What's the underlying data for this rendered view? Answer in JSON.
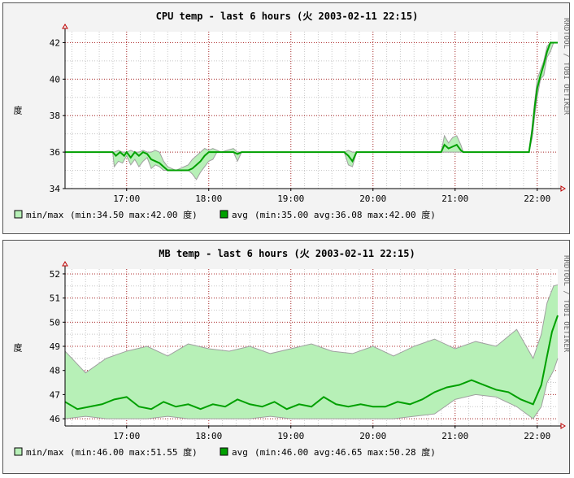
{
  "chart_data": [
    {
      "type": "line",
      "title": "CPU temp - last 6 hours (火 2003-02-11 22:15)",
      "ylabel": "度",
      "ylim": [
        34,
        42.6
      ],
      "yticks": [
        34,
        36,
        38,
        40,
        42
      ],
      "xlim": [
        16.25,
        22.25
      ],
      "xticks": [
        17,
        18,
        19,
        20,
        21,
        22
      ],
      "xtick_labels": [
        "17:00",
        "18:00",
        "19:00",
        "20:00",
        "21:00",
        "22:00"
      ],
      "grid": true,
      "side_label": "RRDTOOL / TOBI OETIKER",
      "colors": {
        "area": "#b7f0b7",
        "minmax_line": "#a0a0a0",
        "avg_line": "#00a000",
        "grid": "#b03030"
      },
      "legend": {
        "minmax_label": "min/max",
        "minmax_stats": "(min:34.50    max:42.00    度)",
        "avg_label": "avg",
        "avg_stats": "(min:35.00    avg:36.08    max:42.00    度)"
      },
      "series": [
        {
          "name": "min/max",
          "x": [
            16.25,
            16.83,
            16.85,
            16.9,
            16.95,
            17.0,
            17.05,
            17.1,
            17.15,
            17.2,
            17.25,
            17.3,
            17.35,
            17.4,
            17.45,
            17.5,
            17.55,
            17.6,
            17.65,
            17.7,
            17.75,
            17.8,
            17.85,
            17.9,
            17.95,
            18.0,
            18.05,
            18.1,
            18.15,
            18.3,
            18.35,
            18.4,
            19.65,
            19.7,
            19.75,
            19.8,
            20.83,
            20.87,
            20.92,
            20.97,
            21.02,
            21.07,
            21.1,
            21.9,
            21.94,
            21.97,
            22.0,
            22.04,
            22.08,
            22.12,
            22.16,
            22.2,
            22.25
          ],
          "min": [
            36,
            36,
            35.2,
            35.5,
            35.4,
            35.8,
            35.3,
            35.6,
            35.2,
            35.5,
            35.7,
            35.1,
            35.3,
            35.2,
            35.0,
            35.0,
            35.0,
            35.0,
            35.0,
            35.0,
            35.0,
            34.8,
            34.5,
            34.9,
            35.2,
            35.5,
            35.6,
            36.0,
            36.0,
            36.0,
            35.5,
            36.0,
            36.0,
            35.3,
            35.2,
            36.0,
            36.0,
            36.0,
            36.0,
            36.0,
            36.0,
            36.0,
            36.0,
            36.0,
            36.8,
            38.0,
            39.0,
            40.0,
            40.2,
            41.2,
            41.5,
            42.0,
            42.0
          ],
          "max": [
            36,
            36,
            36.0,
            36.1,
            36.0,
            36.0,
            36.1,
            36.0,
            36.0,
            36.1,
            36.0,
            36.0,
            36.1,
            36.0,
            35.5,
            35.2,
            35.1,
            35.0,
            35.1,
            35.2,
            35.3,
            35.6,
            35.8,
            36.0,
            36.2,
            36.1,
            36.2,
            36.1,
            36.0,
            36.2,
            36.0,
            36.0,
            36.0,
            36.1,
            36.0,
            36.0,
            36.0,
            36.9,
            36.5,
            36.8,
            36.9,
            36.4,
            36.0,
            36.0,
            37.5,
            38.8,
            40.0,
            40.5,
            41.0,
            41.8,
            42.0,
            42.0,
            42.0
          ]
        },
        {
          "name": "avg",
          "x": [
            16.25,
            16.83,
            16.87,
            16.92,
            16.97,
            17.0,
            17.05,
            17.1,
            17.15,
            17.2,
            17.25,
            17.3,
            17.35,
            17.4,
            17.45,
            17.5,
            17.55,
            17.6,
            17.65,
            17.7,
            17.75,
            17.8,
            17.85,
            17.9,
            17.95,
            18.0,
            18.05,
            18.1,
            18.15,
            18.3,
            18.35,
            18.4,
            19.65,
            19.7,
            19.75,
            19.8,
            20.83,
            20.87,
            20.92,
            20.97,
            21.02,
            21.07,
            21.1,
            21.9,
            21.94,
            21.97,
            22.0,
            22.04,
            22.08,
            22.12,
            22.16,
            22.2,
            22.25
          ],
          "values": [
            36,
            36,
            35.8,
            36.0,
            35.8,
            36.0,
            35.7,
            36.0,
            35.8,
            36.0,
            35.9,
            35.6,
            35.5,
            35.4,
            35.2,
            35.0,
            35.0,
            35.0,
            35.0,
            35.0,
            35.0,
            35.1,
            35.3,
            35.5,
            35.8,
            36.0,
            36.0,
            36.0,
            36.0,
            36.0,
            35.9,
            36.0,
            36.0,
            35.8,
            35.5,
            36.0,
            36.0,
            36.4,
            36.2,
            36.3,
            36.4,
            36.1,
            36.0,
            36.0,
            37.2,
            38.5,
            39.5,
            40.2,
            40.8,
            41.5,
            42.0,
            42.0,
            42.0
          ]
        }
      ]
    },
    {
      "type": "line",
      "title": "MB temp - last 6 hours (火 2003-02-11 22:15)",
      "ylabel": "度",
      "ylim": [
        45.7,
        52.2
      ],
      "yticks": [
        46,
        47,
        48,
        49,
        50,
        51,
        52
      ],
      "xlim": [
        16.25,
        22.25
      ],
      "xticks": [
        17,
        18,
        19,
        20,
        21,
        22
      ],
      "xtick_labels": [
        "17:00",
        "18:00",
        "19:00",
        "20:00",
        "21:00",
        "22:00"
      ],
      "grid": true,
      "side_label": "RRDTOOL / TOBI OETIKER",
      "colors": {
        "area": "#b7f0b7",
        "minmax_line": "#a0a0a0",
        "avg_line": "#00a000",
        "grid": "#b03030"
      },
      "legend": {
        "minmax_label": "min/max",
        "minmax_stats": "(min:46.00    max:51.55    度)",
        "avg_label": "avg",
        "avg_stats": "(min:46.00    avg:46.65    max:50.28    度)"
      },
      "series": [
        {
          "name": "min/max",
          "x": [
            16.25,
            16.5,
            16.75,
            17.0,
            17.25,
            17.5,
            17.75,
            18.0,
            18.25,
            18.5,
            18.75,
            19.0,
            19.25,
            19.5,
            19.75,
            20.0,
            20.25,
            20.5,
            20.75,
            21.0,
            21.25,
            21.5,
            21.75,
            21.95,
            22.05,
            22.12,
            22.2,
            22.25
          ],
          "min": [
            46.0,
            46.1,
            46.0,
            46.0,
            46.0,
            46.1,
            46.0,
            46.0,
            46.0,
            46.0,
            46.1,
            46.0,
            46.0,
            46.0,
            46.0,
            46.0,
            46.0,
            46.1,
            46.2,
            46.8,
            47.0,
            46.9,
            46.5,
            46.0,
            46.5,
            47.5,
            48.0,
            48.5
          ],
          "max": [
            48.8,
            47.9,
            48.5,
            48.8,
            49.0,
            48.6,
            49.1,
            48.9,
            48.8,
            49.0,
            48.7,
            48.9,
            49.1,
            48.8,
            48.7,
            49.0,
            48.6,
            49.0,
            49.3,
            48.9,
            49.2,
            49.0,
            49.7,
            48.5,
            49.5,
            50.8,
            51.5,
            51.55
          ]
        },
        {
          "name": "avg",
          "x": [
            16.25,
            16.4,
            16.55,
            16.7,
            16.85,
            17.0,
            17.15,
            17.3,
            17.45,
            17.6,
            17.75,
            17.9,
            18.05,
            18.2,
            18.35,
            18.5,
            18.65,
            18.8,
            18.95,
            19.1,
            19.25,
            19.4,
            19.55,
            19.7,
            19.85,
            20.0,
            20.15,
            20.3,
            20.45,
            20.6,
            20.75,
            20.9,
            21.05,
            21.2,
            21.35,
            21.5,
            21.65,
            21.8,
            21.95,
            22.05,
            22.12,
            22.18,
            22.25
          ],
          "values": [
            46.7,
            46.4,
            46.5,
            46.6,
            46.8,
            46.9,
            46.5,
            46.4,
            46.7,
            46.5,
            46.6,
            46.4,
            46.6,
            46.5,
            46.8,
            46.6,
            46.5,
            46.7,
            46.4,
            46.6,
            46.5,
            46.9,
            46.6,
            46.5,
            46.6,
            46.5,
            46.5,
            46.7,
            46.6,
            46.8,
            47.1,
            47.3,
            47.4,
            47.6,
            47.4,
            47.2,
            47.1,
            46.8,
            46.6,
            47.4,
            48.6,
            49.6,
            50.28
          ]
        }
      ]
    }
  ]
}
